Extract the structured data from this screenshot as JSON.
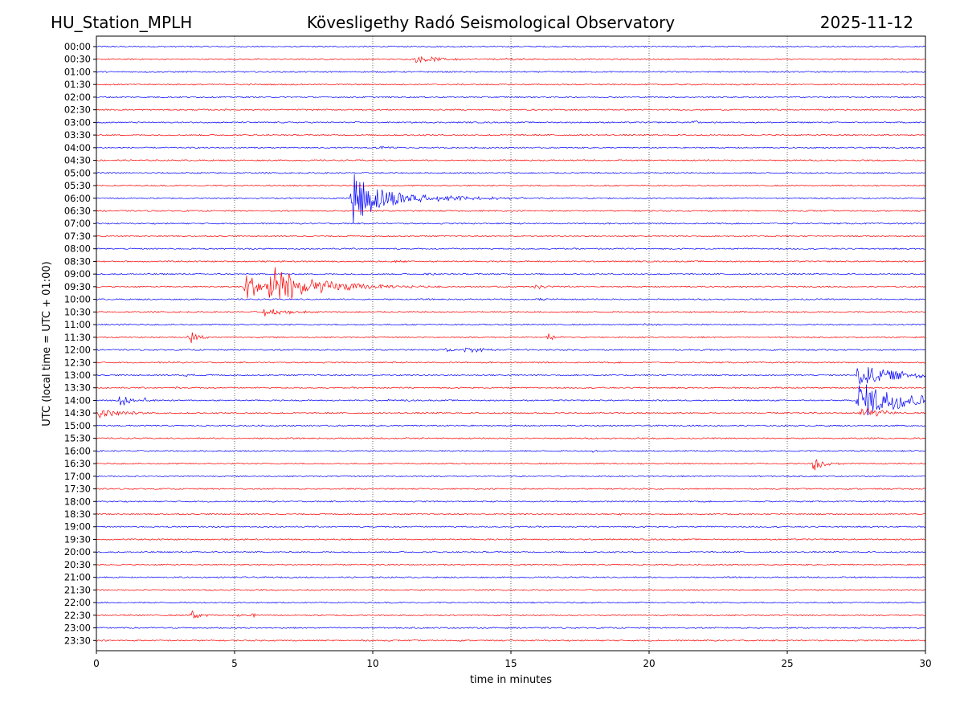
{
  "header": {
    "station": "HU_Station_MPLH",
    "observatory": "Kövesligethy Radó Seismological Observatory",
    "date": "2025-11-12"
  },
  "colors": {
    "even_trace": "#0000ff",
    "odd_trace": "#ff0000",
    "axis": "#000000",
    "grid": "#000000"
  },
  "chart_data": {
    "type": "helicorder",
    "title": "Kövesligethy Radó Seismological Observatory",
    "xlabel": "time in minutes",
    "ylabel": "UTC (local time = UTC + 01:00)",
    "xlim": [
      0,
      30
    ],
    "x_ticks": [
      0,
      5,
      10,
      15,
      20,
      25,
      30
    ],
    "x_gridlines": [
      5,
      10,
      15,
      20,
      25
    ],
    "rows": [
      "00:00",
      "00:30",
      "01:00",
      "01:30",
      "02:00",
      "02:30",
      "03:00",
      "03:30",
      "04:00",
      "04:30",
      "05:00",
      "05:30",
      "06:00",
      "06:30",
      "07:00",
      "07:30",
      "08:00",
      "08:30",
      "09:00",
      "09:30",
      "10:00",
      "10:30",
      "11:00",
      "11:30",
      "12:00",
      "12:30",
      "13:00",
      "13:30",
      "14:00",
      "14:30",
      "15:00",
      "15:30",
      "16:00",
      "16:30",
      "17:00",
      "17:30",
      "18:00",
      "18:30",
      "19:00",
      "19:30",
      "20:00",
      "20:30",
      "21:00",
      "21:30",
      "22:00",
      "22:30",
      "23:00",
      "23:30"
    ],
    "events": [
      {
        "row": 1,
        "start": 11.5,
        "duration": 4.0,
        "amplitude": 0.55,
        "decay": 1.2
      },
      {
        "row": 1,
        "start": 14.8,
        "duration": 0.9,
        "amplitude": 0.25,
        "decay": 0.5
      },
      {
        "row": 6,
        "start": 21.5,
        "duration": 0.8,
        "amplitude": 0.45,
        "decay": 0.4
      },
      {
        "row": 8,
        "start": 10.0,
        "duration": 1.2,
        "amplitude": 0.25,
        "decay": 0.6
      },
      {
        "row": 12,
        "start": 9.2,
        "duration": 5.0,
        "amplitude": 4.8,
        "decay": 1.2
      },
      {
        "row": 12,
        "start": 11.5,
        "duration": 4.0,
        "amplitude": 0.45,
        "decay": 3.0
      },
      {
        "row": 17,
        "start": 10.5,
        "duration": 1.2,
        "amplitude": 0.25,
        "decay": 0.6
      },
      {
        "row": 18,
        "start": 11.8,
        "duration": 0.8,
        "amplitude": 0.25,
        "decay": 0.4
      },
      {
        "row": 19,
        "start": 5.3,
        "duration": 2.4,
        "amplitude": 3.5,
        "decay": 0.5
      },
      {
        "row": 19,
        "start": 6.2,
        "duration": 6.5,
        "amplitude": 3.6,
        "decay": 1.6
      },
      {
        "row": 19,
        "start": 15.8,
        "duration": 1.4,
        "amplitude": 0.45,
        "decay": 0.6
      },
      {
        "row": 20,
        "start": 16.0,
        "duration": 1.0,
        "amplitude": 0.3,
        "decay": 0.5
      },
      {
        "row": 21,
        "start": 6.0,
        "duration": 2.2,
        "amplitude": 0.9,
        "decay": 0.8
      },
      {
        "row": 21,
        "start": 23.0,
        "duration": 0.5,
        "amplitude": 0.2,
        "decay": 0.3
      },
      {
        "row": 22,
        "start": 0.7,
        "duration": 0.5,
        "amplitude": 0.25,
        "decay": 0.3
      },
      {
        "row": 22,
        "start": 19.8,
        "duration": 0.5,
        "amplitude": 0.3,
        "decay": 0.3
      },
      {
        "row": 23,
        "start": 3.3,
        "duration": 0.8,
        "amplitude": 1.5,
        "decay": 0.3
      },
      {
        "row": 23,
        "start": 16.3,
        "duration": 0.6,
        "amplitude": 0.8,
        "decay": 0.25
      },
      {
        "row": 24,
        "start": 12.6,
        "duration": 0.4,
        "amplitude": 0.8,
        "decay": 0.2
      },
      {
        "row": 24,
        "start": 13.2,
        "duration": 3.0,
        "amplitude": 0.45,
        "decay": 1.0
      },
      {
        "row": 25,
        "start": 2.6,
        "duration": 0.5,
        "amplitude": 0.3,
        "decay": 0.3
      },
      {
        "row": 26,
        "start": 3.0,
        "duration": 0.8,
        "amplitude": 0.25,
        "decay": 0.4
      },
      {
        "row": 26,
        "start": 27.5,
        "duration": 2.5,
        "amplitude": 2.0,
        "decay": 1.5
      },
      {
        "row": 27,
        "start": 2.8,
        "duration": 0.4,
        "amplitude": 0.3,
        "decay": 0.2
      },
      {
        "row": 28,
        "start": 0.8,
        "duration": 0.6,
        "amplitude": 2.2,
        "decay": 0.25
      },
      {
        "row": 28,
        "start": 1.7,
        "duration": 0.4,
        "amplitude": 0.8,
        "decay": 0.2
      },
      {
        "row": 28,
        "start": 10.5,
        "duration": 1.0,
        "amplitude": 0.25,
        "decay": 0.5
      },
      {
        "row": 28,
        "start": 27.5,
        "duration": 2.5,
        "amplitude": 3.4,
        "decay": 1.8
      },
      {
        "row": 29,
        "start": 0.0,
        "duration": 3.0,
        "amplitude": 0.9,
        "decay": 0.8
      },
      {
        "row": 29,
        "start": 27.6,
        "duration": 1.4,
        "amplitude": 1.2,
        "decay": 0.8
      },
      {
        "row": 31,
        "start": 11.7,
        "duration": 0.4,
        "amplitude": 0.25,
        "decay": 0.2
      },
      {
        "row": 32,
        "start": 17.9,
        "duration": 0.4,
        "amplitude": 0.3,
        "decay": 0.2
      },
      {
        "row": 33,
        "start": 25.9,
        "duration": 0.6,
        "amplitude": 1.8,
        "decay": 0.3
      },
      {
        "row": 33,
        "start": 26.4,
        "duration": 0.9,
        "amplitude": 0.3,
        "decay": 0.4
      },
      {
        "row": 37,
        "start": 18.9,
        "duration": 0.3,
        "amplitude": 0.3,
        "decay": 0.2
      },
      {
        "row": 45,
        "start": 3.4,
        "duration": 1.0,
        "amplitude": 1.1,
        "decay": 0.35
      },
      {
        "row": 45,
        "start": 5.1,
        "duration": 0.5,
        "amplitude": 0.3,
        "decay": 0.3
      },
      {
        "row": 45,
        "start": 5.6,
        "duration": 0.6,
        "amplitude": 0.35,
        "decay": 0.3
      }
    ]
  }
}
